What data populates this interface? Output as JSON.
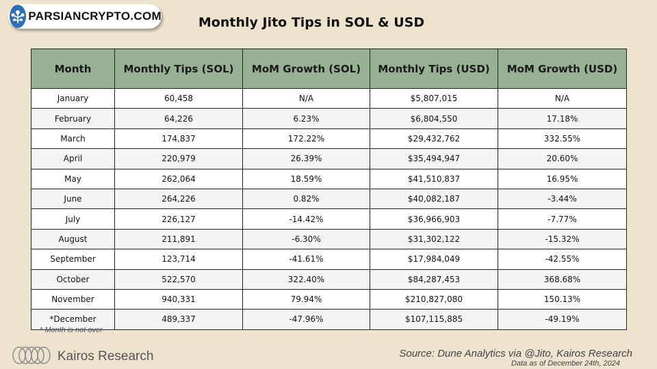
{
  "brand": {
    "badge_text": "PARSIANCRYPTO.COM",
    "logo_icon": "tree-icon"
  },
  "title": "Monthly Jito Tips in SOL & USD",
  "table": {
    "headers": [
      "Month",
      "Monthly Tips (SOL)",
      "MoM Growth (SOL)",
      "Monthly Tips (USD)",
      "MoM Growth (USD)"
    ],
    "rows": [
      [
        "January",
        "60,458",
        "N/A",
        "$5,807,015",
        "N/A"
      ],
      [
        "February",
        "64,226",
        "6.23%",
        "$6,804,550",
        "17.18%"
      ],
      [
        "March",
        "174,837",
        "172.22%",
        "$29,432,762",
        "332.55%"
      ],
      [
        "April",
        "220,979",
        "26.39%",
        "$35,494,947",
        "20.60%"
      ],
      [
        "May",
        "262,064",
        "18.59%",
        "$41,510,837",
        "16.95%"
      ],
      [
        "June",
        "264,226",
        "0.82%",
        "$40,082,187",
        "-3.44%"
      ],
      [
        "July",
        "226,127",
        "-14.42%",
        "$36,966,903",
        "-7.77%"
      ],
      [
        "August",
        "211,891",
        "-6.30%",
        "$31,302,122",
        "-15.32%"
      ],
      [
        "September",
        "123,714",
        "-41.61%",
        "$17,984,049",
        "-42.55%"
      ],
      [
        "October",
        "522,570",
        "322.40%",
        "$84,287,453",
        "368.68%"
      ],
      [
        "November",
        "940,331",
        "79.94%",
        "$210,827,080",
        "150.13%"
      ],
      [
        "*December",
        "489,337",
        "-47.96%",
        "$107,115,885",
        "-49.19%"
      ]
    ]
  },
  "footnote": "* Month is not over",
  "footer": {
    "logo_text": "Kairos Research",
    "logo_icon": "kairos-rings-icon",
    "source": "Source: Dune Analytics via @Jito, Kairos Research",
    "as_of": "Data as of December 24th, 2024"
  },
  "colors": {
    "background": "#ede3cf",
    "header_fill": "#98b094",
    "badge_blue": "#2f6fb8"
  }
}
